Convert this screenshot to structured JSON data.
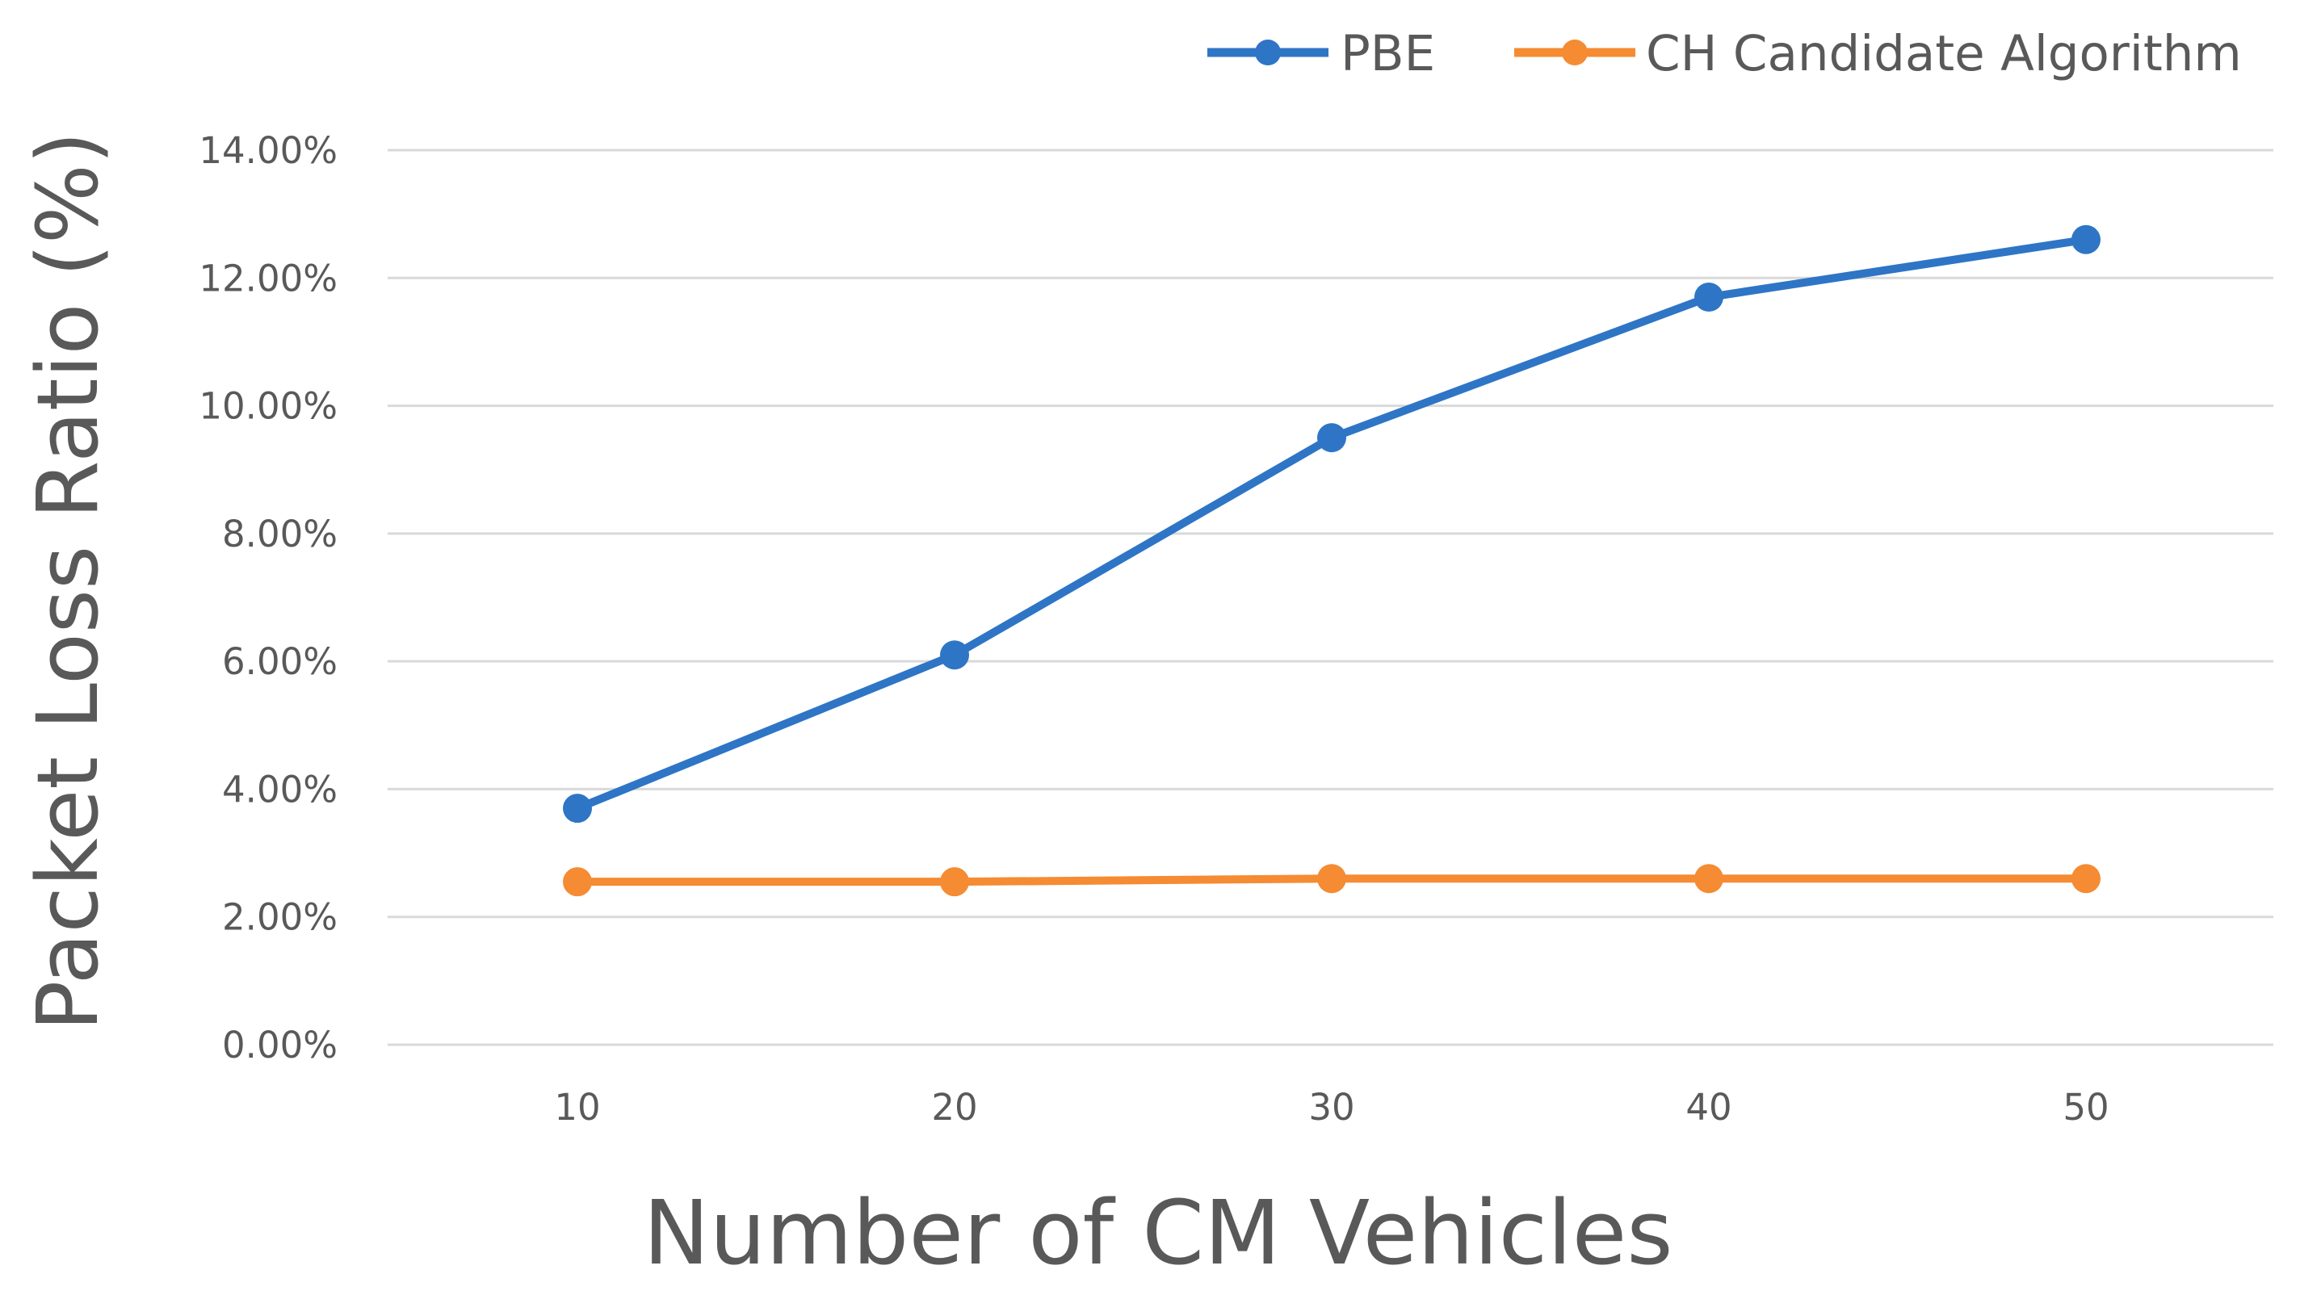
{
  "chart_data": {
    "type": "line",
    "categories": [
      "10",
      "20",
      "30",
      "40",
      "50"
    ],
    "series": [
      {
        "name": "PBE",
        "values": [
          3.7,
          6.1,
          9.5,
          11.7,
          12.6
        ],
        "color": "#2e75c6"
      },
      {
        "name": "CH Candidate Algorithm",
        "values": [
          2.55,
          2.55,
          2.6,
          2.6,
          2.6
        ],
        "color": "#f58b32"
      }
    ],
    "title": "",
    "xlabel": "Number of CM Vehicles",
    "ylabel": "Packet Loss Ratio (%)",
    "ylim": [
      0,
      14
    ],
    "yticks": [
      "0.00%",
      "2.00%",
      "4.00%",
      "6.00%",
      "8.00%",
      "10.00%",
      "12.00%",
      "14.00%"
    ],
    "grid": true,
    "legend_position": "top-right",
    "gridline_color": "#d9d9d9",
    "text_color": "#595959"
  }
}
